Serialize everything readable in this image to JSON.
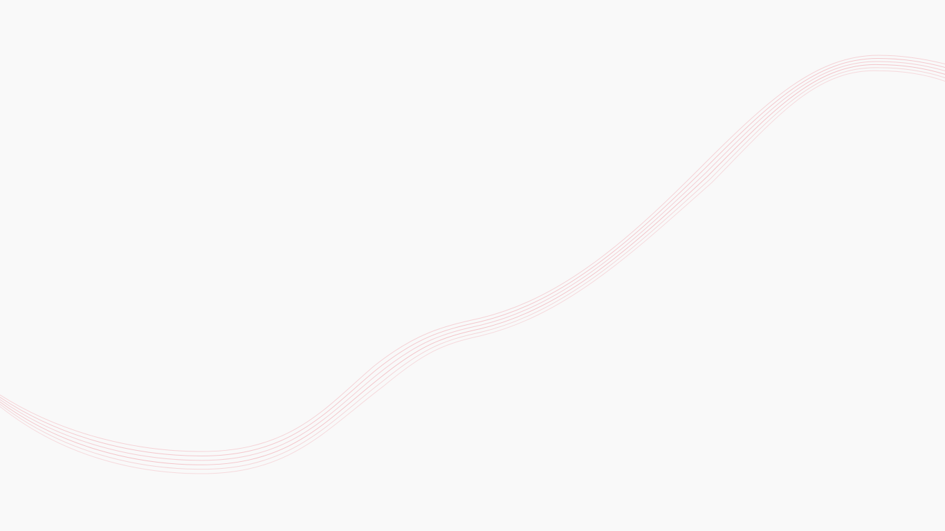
{
  "background_color": "#f9f9f9",
  "line_color": "#f2b3ba",
  "line_count": 6
}
